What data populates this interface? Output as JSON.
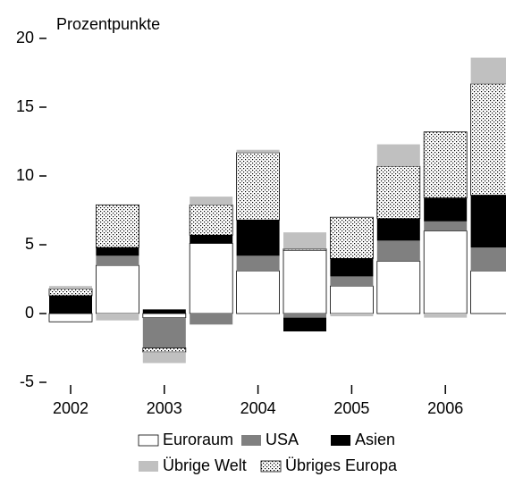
{
  "chart_data": {
    "type": "stacked_bar",
    "y_label": "Prozentpunkte",
    "categories": [
      "2002",
      null,
      "2003",
      null,
      "2004",
      null,
      "2005",
      null,
      "2006",
      null
    ],
    "ylim": [
      -5,
      20
    ],
    "yticks": [
      -5,
      0,
      5,
      10,
      15,
      20
    ],
    "series": [
      {
        "name": "Euroraum",
        "color": "#ffffff",
        "values": [
          -0.6,
          3.5,
          -0.3,
          5.1,
          3.1,
          4.6,
          2.0,
          3.8,
          6.0,
          3.1
        ]
      },
      {
        "name": "USA",
        "color": "#808080",
        "values": [
          0,
          0.7,
          -2.2,
          -0.8,
          1.1,
          -0.3,
          0.7,
          1.5,
          0.7,
          1.7
        ]
      },
      {
        "name": "Asien",
        "color": "#000000",
        "values": [
          1.3,
          0.6,
          0.3,
          0.6,
          2.6,
          -1.0,
          1.3,
          1.6,
          1.7,
          3.8
        ]
      },
      {
        "name": "Übriges Europa",
        "color": "#ffffff",
        "pattern": "dots",
        "values": [
          0.5,
          3.1,
          -0.3,
          2.2,
          4.9,
          0.1,
          3.0,
          3.8,
          4.8,
          8.1
        ]
      },
      {
        "name": "Übrige Welt",
        "color": "#c0c0c0",
        "values": [
          0.2,
          -0.5,
          -0.8,
          0.6,
          0.2,
          1.2,
          -0.2,
          1.6,
          -0.3,
          1.9
        ]
      }
    ]
  }
}
